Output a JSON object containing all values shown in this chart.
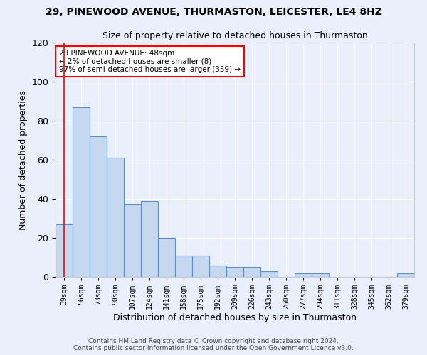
{
  "title1": "29, PINEWOOD AVENUE, THURMASTON, LEICESTER, LE4 8HZ",
  "title2": "Size of property relative to detached houses in Thurmaston",
  "xlabel": "Distribution of detached houses by size in Thurmaston",
  "ylabel": "Number of detached properties",
  "categories": [
    "39sqm",
    "56sqm",
    "73sqm",
    "90sqm",
    "107sqm",
    "124sqm",
    "141sqm",
    "158sqm",
    "175sqm",
    "192sqm",
    "209sqm",
    "226sqm",
    "243sqm",
    "260sqm",
    "277sqm",
    "294sqm",
    "311sqm",
    "328sqm",
    "345sqm",
    "362sqm",
    "379sqm"
  ],
  "values": [
    27,
    87,
    72,
    61,
    37,
    39,
    20,
    11,
    11,
    6,
    5,
    5,
    3,
    0,
    2,
    2,
    0,
    0,
    0,
    0,
    2
  ],
  "bar_color": "#c5d8f0",
  "bar_edge_color": "#5b8ec4",
  "annotation_text": "29 PINEWOOD AVENUE: 48sqm\n← 2% of detached houses are smaller (8)\n97% of semi-detached houses are larger (359) →",
  "annotation_box_color": "white",
  "annotation_box_edge_color": "red",
  "ylim": [
    0,
    120
  ],
  "yticks": [
    0,
    20,
    40,
    60,
    80,
    100,
    120
  ],
  "bg_color": "#eaf0fb",
  "footer1": "Contains HM Land Registry data © Crown copyright and database right 2024.",
  "footer2": "Contains public sector information licensed under the Open Government Licence v3.0."
}
